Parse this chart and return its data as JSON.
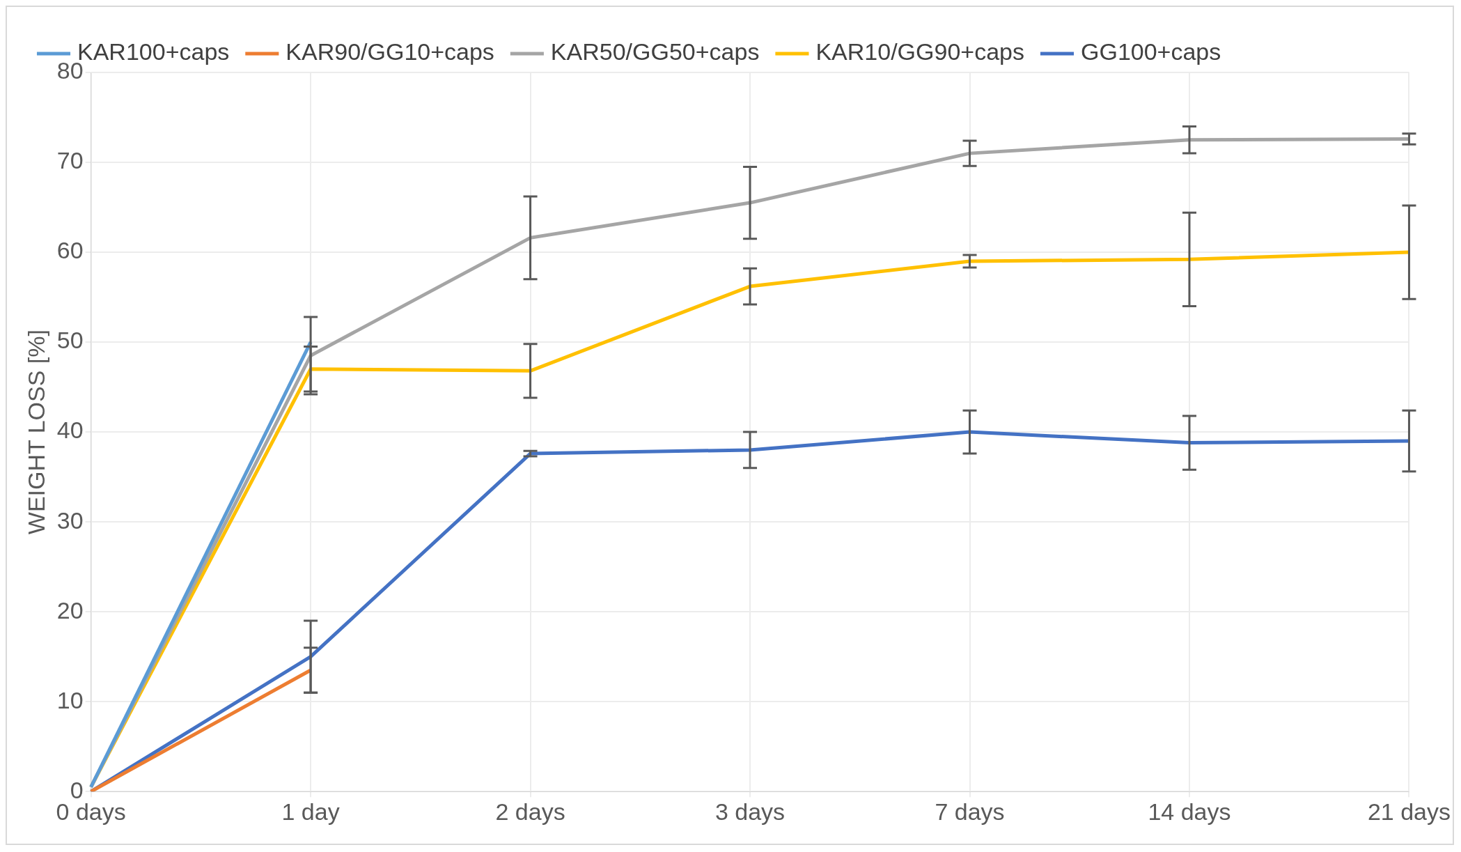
{
  "chart_data": {
    "type": "line",
    "ylabel": "WEIGHT LOSS [%]",
    "categories": [
      "0 days",
      "1 day",
      "2 days",
      "3 days",
      "7 days",
      "14 days",
      "21 days"
    ],
    "ylim": [
      0,
      80
    ],
    "yticks": [
      0,
      10,
      20,
      30,
      40,
      50,
      60,
      70,
      80
    ],
    "grid": true,
    "legend": "top",
    "marker": "none",
    "series": [
      {
        "name": "KAR100+caps",
        "color": "#5b9bd5",
        "values": [
          0.5,
          50,
          null,
          null,
          null,
          null,
          null
        ]
      },
      {
        "name": "KAR90/GG10+caps",
        "color": "#ed7d31",
        "values": [
          0,
          13.5,
          null,
          null,
          null,
          null,
          null
        ],
        "errors": [
          null,
          2.5,
          null,
          null,
          null,
          null,
          null
        ]
      },
      {
        "name": "KAR50/GG50+caps",
        "color": "#a5a5a5",
        "values": [
          0.5,
          48.5,
          61.6,
          65.5,
          71,
          72.5,
          72.6
        ],
        "errors": [
          null,
          4.3,
          4.6,
          4,
          1.4,
          1.5,
          0.6
        ]
      },
      {
        "name": "KAR10/GG90+caps",
        "color": "#ffc000",
        "values": [
          0.5,
          47,
          46.8,
          56.2,
          59,
          59.2,
          60
        ],
        "errors": [
          null,
          2.5,
          3,
          2,
          0.7,
          5.2,
          5.2
        ]
      },
      {
        "name": "GG100+caps",
        "color": "#4472c4",
        "values": [
          0,
          15,
          37.6,
          38,
          40,
          38.8,
          39
        ],
        "errors": [
          null,
          4,
          0.3,
          2,
          2.4,
          3,
          3.4
        ]
      }
    ]
  }
}
